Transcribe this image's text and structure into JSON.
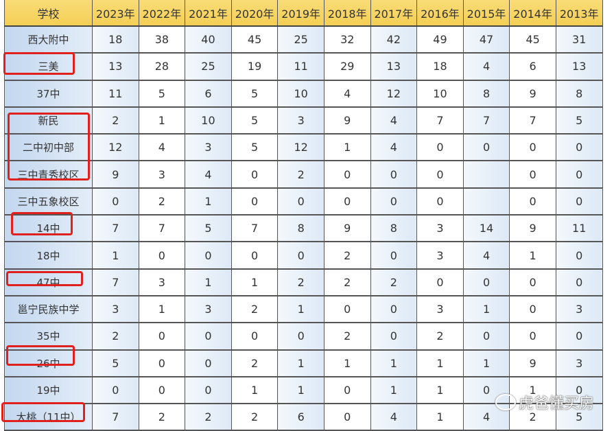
{
  "header": [
    "学校",
    "2023年",
    "2022年",
    "2021年",
    "2020年",
    "2019年",
    "2018年",
    "2017年",
    "2016年",
    "2015年",
    "2014年",
    "2013年"
  ],
  "rows": [
    {
      "school": "西大附中",
      "values": [
        "18",
        "38",
        "40",
        "45",
        "25",
        "32",
        "42",
        "49",
        "47",
        "45",
        "31"
      ],
      "highlighted": false
    },
    {
      "school": "三美",
      "values": [
        "13",
        "28",
        "25",
        "19",
        "11",
        "29",
        "13",
        "18",
        "4",
        "6",
        "13"
      ],
      "highlighted": true
    },
    {
      "school": "37中",
      "values": [
        "11",
        "5",
        "6",
        "5",
        "10",
        "4",
        "12",
        "10",
        "8",
        "9",
        "8"
      ],
      "highlighted": false
    },
    {
      "school": "新民",
      "values": [
        "2",
        "1",
        "10",
        "5",
        "3",
        "9",
        "4",
        "7",
        "7",
        "7",
        "5"
      ],
      "highlighted": true
    },
    {
      "school": "二中初中部",
      "values": [
        "12",
        "4",
        "3",
        "5",
        "12",
        "1",
        "4",
        "0",
        "0",
        "0",
        "0"
      ],
      "highlighted": true
    },
    {
      "school": "三中青秀校区",
      "values": [
        "9",
        "3",
        "4",
        "0",
        "2",
        "0",
        "0",
        "0",
        "",
        "0",
        "0"
      ],
      "highlighted": true
    },
    {
      "school": "三中五象校区",
      "values": [
        "0",
        "2",
        "1",
        "0",
        "0",
        "0",
        "0",
        "0",
        "",
        "0",
        "0"
      ],
      "highlighted": false
    },
    {
      "school": "14中",
      "values": [
        "7",
        "7",
        "5",
        "7",
        "8",
        "9",
        "8",
        "3",
        "14",
        "9",
        "11"
      ],
      "highlighted": true
    },
    {
      "school": "18中",
      "values": [
        "1",
        "0",
        "0",
        "0",
        "0",
        "2",
        "0",
        "3",
        "4",
        "1",
        "0"
      ],
      "highlighted": false
    },
    {
      "school": "47中",
      "values": [
        "7",
        "3",
        "1",
        "1",
        "2",
        "2",
        "2",
        "0",
        "0",
        "0",
        "0"
      ],
      "highlighted": true
    },
    {
      "school": "邕宁民族中学",
      "values": [
        "3",
        "1",
        "3",
        "2",
        "1",
        "0",
        "0",
        "3",
        "1",
        "0",
        "3"
      ],
      "highlighted": false
    },
    {
      "school": "35中",
      "values": [
        "2",
        "0",
        "0",
        "0",
        "0",
        "2",
        "0",
        "2",
        "0",
        "0",
        "0"
      ],
      "highlighted": false
    },
    {
      "school": "26中",
      "values": [
        "5",
        "0",
        "0",
        "2",
        "1",
        "1",
        "1",
        "1",
        "1",
        "9",
        "3"
      ],
      "highlighted": true
    },
    {
      "school": "19中",
      "values": [
        "0",
        "0",
        "0",
        "1",
        "1",
        "0",
        "1",
        "1",
        "0",
        "1",
        "0"
      ],
      "highlighted": false
    },
    {
      "school": "大桃（11中）",
      "values": [
        "7",
        "2",
        "2",
        "2",
        "6",
        "0",
        "4",
        "1",
        "4",
        "2",
        "5"
      ],
      "highlighted": true
    }
  ],
  "colors": {
    "header": "#f6d462",
    "highlight_box": "#e0201c",
    "school_column": "#c3d7ef"
  },
  "watermark": {
    "icon": "wechat-icon",
    "text": "虎爸懂买房"
  }
}
